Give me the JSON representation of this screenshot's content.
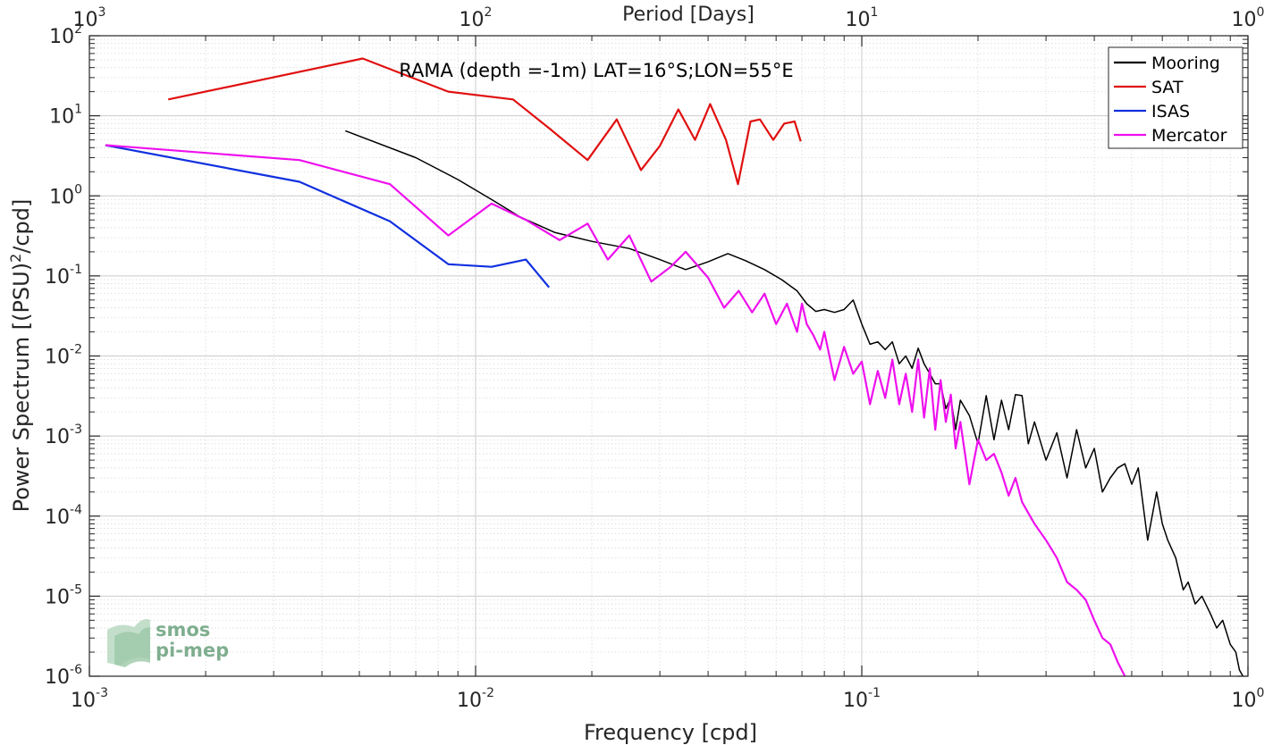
{
  "chart_data": {
    "type": "line",
    "title": "RAMA (depth =-1m) LAT=16°S;LON=55°E",
    "xlabel": "Frequency [cpd]",
    "ylabel_main": "Power Spectrum [(PSU)",
    "ylabel_sup": "2",
    "ylabel_tail": "/cpd]",
    "top_xlabel": "Period [Days]",
    "x_scale": "log",
    "y_scale": "log",
    "xlim": [
      0.001,
      1
    ],
    "ylim": [
      1e-06,
      100
    ],
    "grid": true,
    "legend_position": "top-right",
    "x_ticks": [
      {
        "base": "10",
        "exp": "-3",
        "value": 0.001
      },
      {
        "base": "10",
        "exp": "-2",
        "value": 0.01
      },
      {
        "base": "10",
        "exp": "-1",
        "value": 0.1
      },
      {
        "base": "10",
        "exp": "0",
        "value": 1
      }
    ],
    "y_ticks": [
      {
        "base": "10",
        "exp": "-6",
        "value": 1e-06
      },
      {
        "base": "10",
        "exp": "-5",
        "value": 1e-05
      },
      {
        "base": "10",
        "exp": "-4",
        "value": 0.0001
      },
      {
        "base": "10",
        "exp": "-3",
        "value": 0.001
      },
      {
        "base": "10",
        "exp": "-2",
        "value": 0.01
      },
      {
        "base": "10",
        "exp": "-1",
        "value": 0.1
      },
      {
        "base": "10",
        "exp": "0",
        "value": 1
      },
      {
        "base": "10",
        "exp": "1",
        "value": 10
      },
      {
        "base": "10",
        "exp": "2",
        "value": 100
      }
    ],
    "top_ticks": [
      {
        "base": "10",
        "exp": "3",
        "freq": 0.001
      },
      {
        "base": "10",
        "exp": "2",
        "freq": 0.01
      },
      {
        "base": "10",
        "exp": "1",
        "freq": 0.1
      },
      {
        "base": "10",
        "exp": "0",
        "freq": 1
      }
    ],
    "series": [
      {
        "name": "Mooring",
        "color": "#000000",
        "x": [
          0.0046,
          0.007,
          0.009,
          0.011,
          0.013,
          0.016,
          0.02,
          0.025,
          0.03,
          0.035,
          0.04,
          0.045,
          0.05,
          0.056,
          0.062,
          0.068,
          0.072,
          0.076,
          0.08,
          0.085,
          0.09,
          0.095,
          0.1,
          0.105,
          0.11,
          0.115,
          0.12,
          0.125,
          0.13,
          0.135,
          0.14,
          0.145,
          0.15,
          0.155,
          0.16,
          0.165,
          0.17,
          0.175,
          0.18,
          0.19,
          0.2,
          0.21,
          0.22,
          0.23,
          0.24,
          0.25,
          0.26,
          0.27,
          0.28,
          0.3,
          0.32,
          0.34,
          0.36,
          0.38,
          0.4,
          0.42,
          0.44,
          0.46,
          0.48,
          0.5,
          0.52,
          0.55,
          0.58,
          0.6,
          0.62,
          0.65,
          0.68,
          0.7,
          0.73,
          0.76,
          0.8,
          0.83,
          0.86,
          0.9,
          0.93,
          0.95,
          0.97
        ],
        "y": [
          6.5,
          3.0,
          1.6,
          0.9,
          0.55,
          0.35,
          0.27,
          0.22,
          0.16,
          0.12,
          0.15,
          0.19,
          0.155,
          0.12,
          0.09,
          0.065,
          0.045,
          0.036,
          0.038,
          0.035,
          0.038,
          0.05,
          0.025,
          0.014,
          0.015,
          0.012,
          0.015,
          0.008,
          0.01,
          0.007,
          0.0125,
          0.008,
          0.006,
          0.0045,
          0.0045,
          0.0022,
          0.003,
          0.0012,
          0.0028,
          0.0018,
          0.0008,
          0.0032,
          0.0009,
          0.0028,
          0.0012,
          0.0033,
          0.0032,
          0.0008,
          0.0015,
          0.0005,
          0.0011,
          0.0003,
          0.0012,
          0.0004,
          0.0007,
          0.0002,
          0.0003,
          0.0004,
          0.00045,
          0.00025,
          0.0004,
          5e-05,
          0.0002,
          8e-05,
          5e-05,
          3e-05,
          1.2e-05,
          1.5e-05,
          8e-06,
          1e-05,
          6e-06,
          4e-06,
          5e-06,
          2.5e-06,
          2e-06,
          1.2e-06,
          1e-06
        ]
      },
      {
        "name": "SAT",
        "color": "#e01010",
        "x": [
          0.0016,
          0.0051,
          0.0085,
          0.0125,
          0.0155,
          0.0195,
          0.0232,
          0.0268,
          0.03,
          0.0335,
          0.037,
          0.0405,
          0.0445,
          0.0478,
          0.0515,
          0.0545,
          0.059,
          0.063,
          0.067,
          0.0695
        ],
        "y": [
          16,
          52,
          20,
          16,
          7,
          2.8,
          9,
          2.1,
          4.2,
          12,
          5,
          14,
          5,
          1.4,
          8.5,
          9,
          5,
          8,
          8.5,
          4.8
        ]
      },
      {
        "name": "ISAS",
        "color": "#1030e0",
        "x": [
          0.0011,
          0.0035,
          0.006,
          0.0085,
          0.011,
          0.0135,
          0.0155
        ],
        "y": [
          4.3,
          1.5,
          0.48,
          0.14,
          0.13,
          0.16,
          0.072
        ]
      },
      {
        "name": "Mercator",
        "color": "#ee10ee",
        "x": [
          0.0011,
          0.0035,
          0.006,
          0.0085,
          0.011,
          0.0135,
          0.0165,
          0.0195,
          0.022,
          0.025,
          0.0285,
          0.032,
          0.035,
          0.04,
          0.044,
          0.048,
          0.052,
          0.056,
          0.06,
          0.064,
          0.068,
          0.07,
          0.072,
          0.075,
          0.078,
          0.08,
          0.085,
          0.09,
          0.095,
          0.1,
          0.105,
          0.11,
          0.115,
          0.12,
          0.125,
          0.13,
          0.135,
          0.14,
          0.145,
          0.15,
          0.155,
          0.16,
          0.165,
          0.17,
          0.175,
          0.18,
          0.19,
          0.2,
          0.21,
          0.22,
          0.23,
          0.24,
          0.25,
          0.26,
          0.28,
          0.3,
          0.32,
          0.34,
          0.36,
          0.38,
          0.4,
          0.42,
          0.44,
          0.46,
          0.48
        ],
        "y": [
          4.3,
          2.8,
          1.4,
          0.32,
          0.8,
          0.5,
          0.28,
          0.45,
          0.16,
          0.32,
          0.085,
          0.13,
          0.2,
          0.095,
          0.04,
          0.065,
          0.035,
          0.06,
          0.025,
          0.045,
          0.02,
          0.045,
          0.025,
          0.018,
          0.012,
          0.02,
          0.005,
          0.013,
          0.006,
          0.0085,
          0.0025,
          0.0065,
          0.003,
          0.009,
          0.0025,
          0.006,
          0.002,
          0.009,
          0.0017,
          0.007,
          0.0012,
          0.005,
          0.0015,
          0.0033,
          0.0007,
          0.0015,
          0.00025,
          0.0009,
          0.0005,
          0.0006,
          0.00035,
          0.00018,
          0.0003,
          0.00015,
          8e-05,
          5e-05,
          3e-05,
          1.5e-05,
          1.2e-05,
          9e-06,
          5e-06,
          3e-06,
          2.5e-06,
          1.5e-06,
          1e-06
        ]
      }
    ]
  },
  "logo": {
    "line1": "smos",
    "line2": "pi-mep",
    "color": "#7fae8f"
  }
}
